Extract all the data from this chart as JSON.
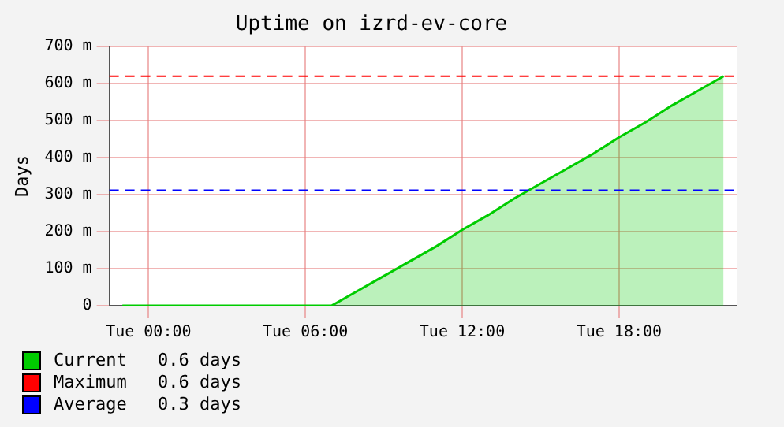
{
  "chart_data": {
    "type": "area",
    "title": "Uptime on izrd-ev-core",
    "ylabel": "Days",
    "categories": [
      null,
      "Tue 00:00",
      null,
      null,
      null,
      null,
      null,
      "Tue 06:00",
      null,
      null,
      null,
      null,
      null,
      "Tue 12:00",
      null,
      null,
      null,
      null,
      null,
      "Tue 18:00",
      null,
      null,
      null,
      null
    ],
    "series": [
      {
        "name": "Current",
        "color": "#00cc00",
        "values": [
          0,
          0,
          0,
          0,
          0,
          0,
          0,
          0,
          0,
          40,
          80,
          120,
          160,
          205,
          245,
          290,
          330,
          370,
          410,
          455,
          495,
          540,
          580,
          620
        ]
      }
    ],
    "ylim": [
      0,
      700
    ],
    "yticks": [
      0,
      {
        "value": 100,
        "label": "100 m"
      },
      {
        "value": 200,
        "label": "200 m"
      },
      {
        "value": 300,
        "label": "300 m"
      },
      {
        "value": 400,
        "label": "400 m"
      },
      {
        "value": 500,
        "label": "500 m"
      },
      {
        "value": 600,
        "label": "600 m"
      },
      {
        "value": 700,
        "label": "700 m"
      }
    ],
    "ref_lines": [
      {
        "axis": "y",
        "value": 620,
        "label": "Maximum",
        "color": "#ff0000",
        "line_style": "dashed"
      },
      {
        "axis": "y",
        "value": 312,
        "label": "Average",
        "color": "#0000ff",
        "line_style": "dashed"
      }
    ],
    "annotations": [
      "0.6 days",
      "0.6 days",
      "0.3 days"
    ],
    "grid": true,
    "legend": "bottom"
  }
}
